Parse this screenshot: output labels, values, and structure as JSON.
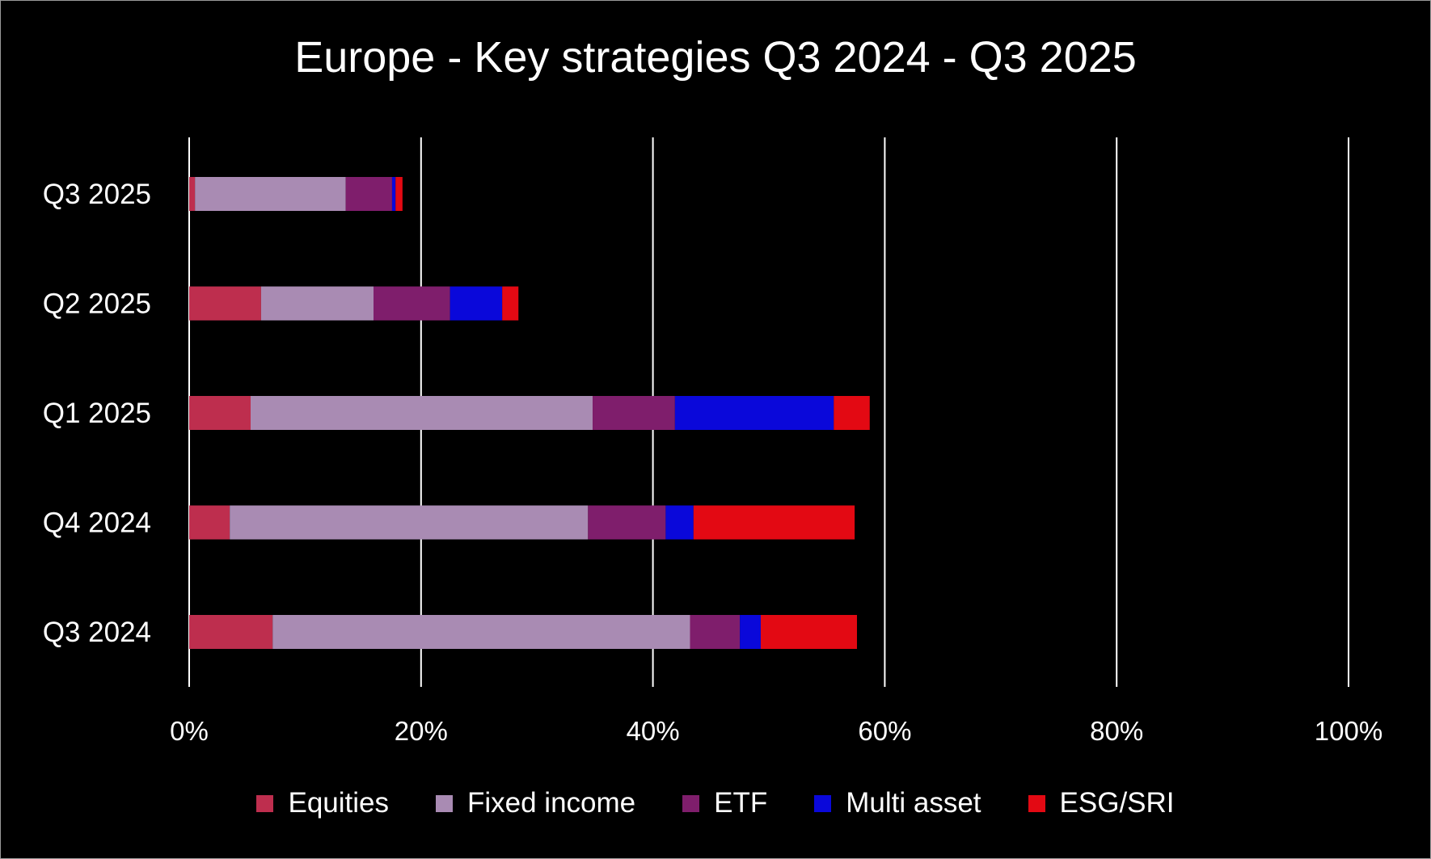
{
  "chart_data": {
    "type": "bar",
    "orientation": "horizontal",
    "stacked": true,
    "title": "Europe - Key strategies Q3 2024 - Q3 2025",
    "xlabel": "",
    "ylabel": "",
    "xlim": [
      0,
      100
    ],
    "x_ticks": [
      "0%",
      "20%",
      "40%",
      "60%",
      "80%",
      "100%"
    ],
    "grid": "vertical",
    "legend_position": "bottom",
    "categories": [
      "Q3 2025",
      "Q2 2025",
      "Q1 2025",
      "Q4 2024",
      "Q3 2024"
    ],
    "series": [
      {
        "name": "Equities",
        "color": "#be2e4e",
        "values": [
          0.5,
          6.2,
          5.3,
          3.5,
          7.2
        ]
      },
      {
        "name": "Fixed income",
        "color": "#a98bb3",
        "values": [
          13.0,
          9.7,
          29.5,
          30.9,
          36.0
        ]
      },
      {
        "name": "ETF",
        "color": "#7f1e6c",
        "values": [
          4.0,
          6.6,
          7.1,
          6.7,
          4.3
        ]
      },
      {
        "name": "Multi asset",
        "color": "#0a08da",
        "values": [
          0.3,
          4.5,
          13.7,
          2.4,
          1.8
        ]
      },
      {
        "name": "ESG/SRI",
        "color": "#e30913",
        "values": [
          0.6,
          1.4,
          3.1,
          13.9,
          8.3
        ]
      }
    ]
  }
}
